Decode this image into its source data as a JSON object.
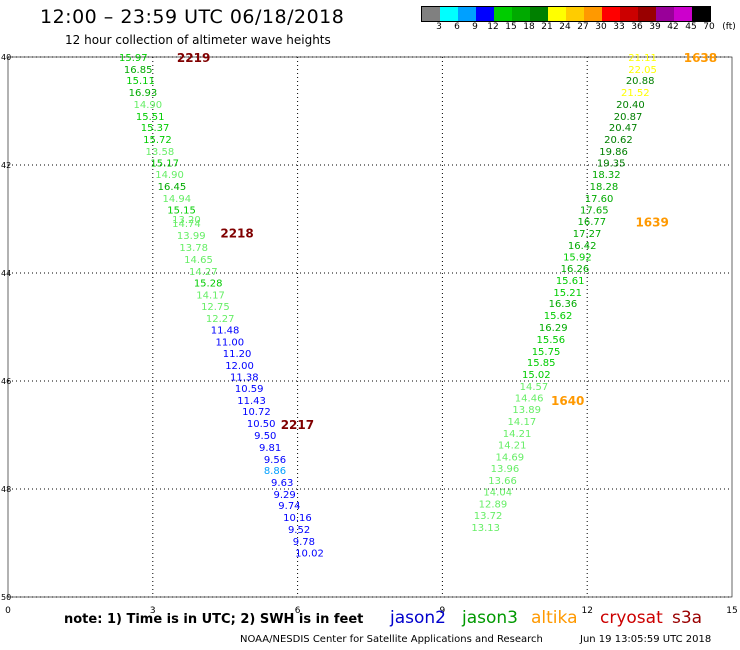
{
  "header": {
    "title": "12:00 – 23:59 UTC 06/18/2018",
    "subtitle": "12 hour collection of altimeter wave heights"
  },
  "colorbar": {
    "unit_label": "(ft)",
    "colors": [
      "#808080",
      "#00ffff",
      "#00a0ff",
      "#0000ff",
      "#00cc00",
      "#00aa00",
      "#008000",
      "#ffff00",
      "#ffcc00",
      "#ff9900",
      "#ff0000",
      "#cc0000",
      "#990000",
      "#990099",
      "#cc00cc",
      "#000000"
    ],
    "labels": [
      "3",
      "6",
      "9",
      "12",
      "15",
      "18",
      "21",
      "24",
      "27",
      "30",
      "33",
      "36",
      "39",
      "42",
      "45",
      "70"
    ]
  },
  "map": {
    "x_ticks": [
      "0",
      "3",
      "6",
      "9",
      "12",
      "15"
    ],
    "y_ticks": [
      "40",
      "42",
      "44",
      "46",
      "48",
      "50"
    ]
  },
  "tracks": {
    "left": {
      "hour_labels": [
        {
          "text": "2219",
          "lon": 3.5,
          "lat": 40.0
        },
        {
          "text": "2218",
          "lon": 4.4,
          "lat": 43.25
        },
        {
          "text": "2217",
          "lon": 5.65,
          "lat": 46.8
        }
      ],
      "points": [
        {
          "v": "15.97",
          "c": "#00cc00",
          "lon": 2.3,
          "lat": 40.0
        },
        {
          "v": "16.85",
          "c": "#00aa00",
          "lon": 2.4,
          "lat": 40.22
        },
        {
          "v": "15.11",
          "c": "#00cc00",
          "lon": 2.45,
          "lat": 40.43
        },
        {
          "v": "16.93",
          "c": "#00aa00",
          "lon": 2.5,
          "lat": 40.65
        },
        {
          "v": "14.90",
          "c": "#66ee66",
          "lon": 2.6,
          "lat": 40.87
        },
        {
          "v": "15.51",
          "c": "#00cc00",
          "lon": 2.65,
          "lat": 41.09
        },
        {
          "v": "15.37",
          "c": "#00cc00",
          "lon": 2.75,
          "lat": 41.3
        },
        {
          "v": "15.72",
          "c": "#00cc00",
          "lon": 2.8,
          "lat": 41.52
        },
        {
          "v": "13.58",
          "c": "#66ee66",
          "lon": 2.85,
          "lat": 41.74
        },
        {
          "v": "15.17",
          "c": "#00cc00",
          "lon": 2.95,
          "lat": 41.95
        },
        {
          "v": "14.90",
          "c": "#66ee66",
          "lon": 3.05,
          "lat": 42.17
        },
        {
          "v": "16.45",
          "c": "#00aa00",
          "lon": 3.1,
          "lat": 42.39
        },
        {
          "v": "14.94",
          "c": "#66ee66",
          "lon": 3.2,
          "lat": 42.61
        },
        {
          "v": "15.15",
          "c": "#00cc00",
          "lon": 3.3,
          "lat": 42.82
        },
        {
          "v": "13.20",
          "c": "#66ee66",
          "lon": 3.4,
          "lat": 43.0
        },
        {
          "v": "14.74",
          "c": "#66ee66",
          "lon": 3.4,
          "lat": 43.07
        },
        {
          "v": "13.99",
          "c": "#66ee66",
          "lon": 3.5,
          "lat": 43.3
        },
        {
          "v": "13.78",
          "c": "#66ee66",
          "lon": 3.55,
          "lat": 43.52
        },
        {
          "v": "14.65",
          "c": "#66ee66",
          "lon": 3.65,
          "lat": 43.74
        },
        {
          "v": "14.27",
          "c": "#66ee66",
          "lon": 3.75,
          "lat": 43.96
        },
        {
          "v": "15.28",
          "c": "#00cc00",
          "lon": 3.85,
          "lat": 44.18
        },
        {
          "v": "14.17",
          "c": "#66ee66",
          "lon": 3.9,
          "lat": 44.4
        },
        {
          "v": "12.75",
          "c": "#66ee66",
          "lon": 4.0,
          "lat": 44.61
        },
        {
          "v": "12.27",
          "c": "#66ee66",
          "lon": 4.1,
          "lat": 44.83
        },
        {
          "v": "11.48",
          "c": "#0000ff",
          "lon": 4.2,
          "lat": 45.05
        },
        {
          "v": "11.00",
          "c": "#0000ff",
          "lon": 4.3,
          "lat": 45.27
        },
        {
          "v": "11.20",
          "c": "#0000ff",
          "lon": 4.45,
          "lat": 45.48
        },
        {
          "v": "12.00",
          "c": "#0000ff",
          "lon": 4.5,
          "lat": 45.7
        },
        {
          "v": "11.38",
          "c": "#0000ff",
          "lon": 4.6,
          "lat": 45.92
        },
        {
          "v": "10.59",
          "c": "#0000ff",
          "lon": 4.7,
          "lat": 46.13
        },
        {
          "v": "11.43",
          "c": "#0000ff",
          "lon": 4.75,
          "lat": 46.35
        },
        {
          "v": "10.72",
          "c": "#0000ff",
          "lon": 4.85,
          "lat": 46.56
        },
        {
          "v": "10.50",
          "c": "#0000ff",
          "lon": 4.95,
          "lat": 46.78
        },
        {
          "v": "9.50",
          "c": "#0000ff",
          "lon": 5.1,
          "lat": 47.0
        },
        {
          "v": "9.81",
          "c": "#0000ff",
          "lon": 5.2,
          "lat": 47.22
        },
        {
          "v": "9.56",
          "c": "#0000ff",
          "lon": 5.3,
          "lat": 47.44
        },
        {
          "v": "8.86",
          "c": "#00a0ff",
          "lon": 5.3,
          "lat": 47.65
        },
        {
          "v": "9.63",
          "c": "#0000ff",
          "lon": 5.45,
          "lat": 47.87
        },
        {
          "v": "9.29",
          "c": "#0000ff",
          "lon": 5.5,
          "lat": 48.09
        },
        {
          "v": "9.74",
          "c": "#0000ff",
          "lon": 5.6,
          "lat": 48.3
        },
        {
          "v": "10.16",
          "c": "#0000ff",
          "lon": 5.7,
          "lat": 48.52
        },
        {
          "v": "9.52",
          "c": "#0000ff",
          "lon": 5.8,
          "lat": 48.74
        },
        {
          "v": "9.78",
          "c": "#0000ff",
          "lon": 5.9,
          "lat": 48.96
        },
        {
          "v": "10.02",
          "c": "#0000ff",
          "lon": 5.95,
          "lat": 49.18
        }
      ]
    },
    "right": {
      "hour_labels": [
        {
          "text": "1638",
          "lon": 14.0,
          "lat": 40.0
        },
        {
          "text": "1639",
          "lon": 13.0,
          "lat": 43.05
        },
        {
          "text": "1640",
          "lon": 11.25,
          "lat": 46.35
        }
      ],
      "points": [
        {
          "v": "21.11",
          "c": "#ffff00",
          "lon": 12.85,
          "lat": 40.0
        },
        {
          "v": "22.05",
          "c": "#ffff00",
          "lon": 12.85,
          "lat": 40.22
        },
        {
          "v": "20.88",
          "c": "#008000",
          "lon": 12.8,
          "lat": 40.43
        },
        {
          "v": "21.52",
          "c": "#ffff00",
          "lon": 12.7,
          "lat": 40.65
        },
        {
          "v": "20.40",
          "c": "#008000",
          "lon": 12.6,
          "lat": 40.87
        },
        {
          "v": "20.87",
          "c": "#008000",
          "lon": 12.55,
          "lat": 41.09
        },
        {
          "v": "20.47",
          "c": "#008000",
          "lon": 12.45,
          "lat": 41.3
        },
        {
          "v": "20.62",
          "c": "#008000",
          "lon": 12.35,
          "lat": 41.52
        },
        {
          "v": "19.86",
          "c": "#008000",
          "lon": 12.25,
          "lat": 41.74
        },
        {
          "v": "19.35",
          "c": "#008000",
          "lon": 12.2,
          "lat": 41.95
        },
        {
          "v": "18.32",
          "c": "#00aa00",
          "lon": 12.1,
          "lat": 42.17
        },
        {
          "v": "18.28",
          "c": "#00aa00",
          "lon": 12.05,
          "lat": 42.39
        },
        {
          "v": "17.60",
          "c": "#00aa00",
          "lon": 11.95,
          "lat": 42.61
        },
        {
          "v": "17.65",
          "c": "#00aa00",
          "lon": 11.85,
          "lat": 42.82
        },
        {
          "v": "16.77",
          "c": "#00aa00",
          "lon": 11.8,
          "lat": 43.04
        },
        {
          "v": "17.27",
          "c": "#00aa00",
          "lon": 11.7,
          "lat": 43.26
        },
        {
          "v": "16.42",
          "c": "#00aa00",
          "lon": 11.6,
          "lat": 43.48
        },
        {
          "v": "15.92",
          "c": "#00cc00",
          "lon": 11.5,
          "lat": 43.69
        },
        {
          "v": "16.26",
          "c": "#00aa00",
          "lon": 11.45,
          "lat": 43.91
        },
        {
          "v": "15.61",
          "c": "#00cc00",
          "lon": 11.35,
          "lat": 44.13
        },
        {
          "v": "15.21",
          "c": "#00cc00",
          "lon": 11.3,
          "lat": 44.35
        },
        {
          "v": "16.36",
          "c": "#00aa00",
          "lon": 11.2,
          "lat": 44.56
        },
        {
          "v": "15.62",
          "c": "#00cc00",
          "lon": 11.1,
          "lat": 44.78
        },
        {
          "v": "16.29",
          "c": "#00aa00",
          "lon": 11.0,
          "lat": 45.0
        },
        {
          "v": "15.56",
          "c": "#00cc00",
          "lon": 10.95,
          "lat": 45.22
        },
        {
          "v": "15.75",
          "c": "#00cc00",
          "lon": 10.85,
          "lat": 45.44
        },
        {
          "v": "15.85",
          "c": "#00cc00",
          "lon": 10.75,
          "lat": 45.65
        },
        {
          "v": "15.02",
          "c": "#00cc00",
          "lon": 10.65,
          "lat": 45.87
        },
        {
          "v": "14.57",
          "c": "#66ee66",
          "lon": 10.6,
          "lat": 46.09
        },
        {
          "v": "14.46",
          "c": "#66ee66",
          "lon": 10.5,
          "lat": 46.31
        },
        {
          "v": "13.89",
          "c": "#66ee66",
          "lon": 10.45,
          "lat": 46.52
        },
        {
          "v": "14.17",
          "c": "#66ee66",
          "lon": 10.35,
          "lat": 46.74
        },
        {
          "v": "14.21",
          "c": "#66ee66",
          "lon": 10.25,
          "lat": 46.96
        },
        {
          "v": "14.21",
          "c": "#66ee66",
          "lon": 10.15,
          "lat": 47.18
        },
        {
          "v": "14.69",
          "c": "#66ee66",
          "lon": 10.1,
          "lat": 47.4
        },
        {
          "v": "13.96",
          "c": "#66ee66",
          "lon": 10.0,
          "lat": 47.61
        },
        {
          "v": "13.66",
          "c": "#66ee66",
          "lon": 9.95,
          "lat": 47.83
        },
        {
          "v": "14.04",
          "c": "#66ee66",
          "lon": 9.85,
          "lat": 48.05
        },
        {
          "v": "12.89",
          "c": "#66ee66",
          "lon": 9.75,
          "lat": 48.27
        },
        {
          "v": "13.72",
          "c": "#66ee66",
          "lon": 9.65,
          "lat": 48.48
        },
        {
          "v": "13.13",
          "c": "#66ee66",
          "lon": 9.6,
          "lat": 48.7
        }
      ]
    }
  },
  "footer": {
    "note": "note:  1) Time is in UTC;  2) SWH is in feet",
    "legend": [
      {
        "name": "jason2",
        "color": "#0000cc"
      },
      {
        "name": "jason3",
        "color": "#009900"
      },
      {
        "name": "altika",
        "color": "#ff9900"
      },
      {
        "name": "cryosat",
        "color": "#cc0000"
      },
      {
        "name": "s3a",
        "color": "#990000"
      }
    ],
    "credit": "NOAA/NESDIS Center for Satellite Applications and Research",
    "timestamp": "Jun 19 13:05:59 UTC 2018"
  },
  "styles": {
    "hour_label_left_color": "#800000",
    "hour_label_right_color": "#ff9900",
    "grid_color": "#000000"
  }
}
